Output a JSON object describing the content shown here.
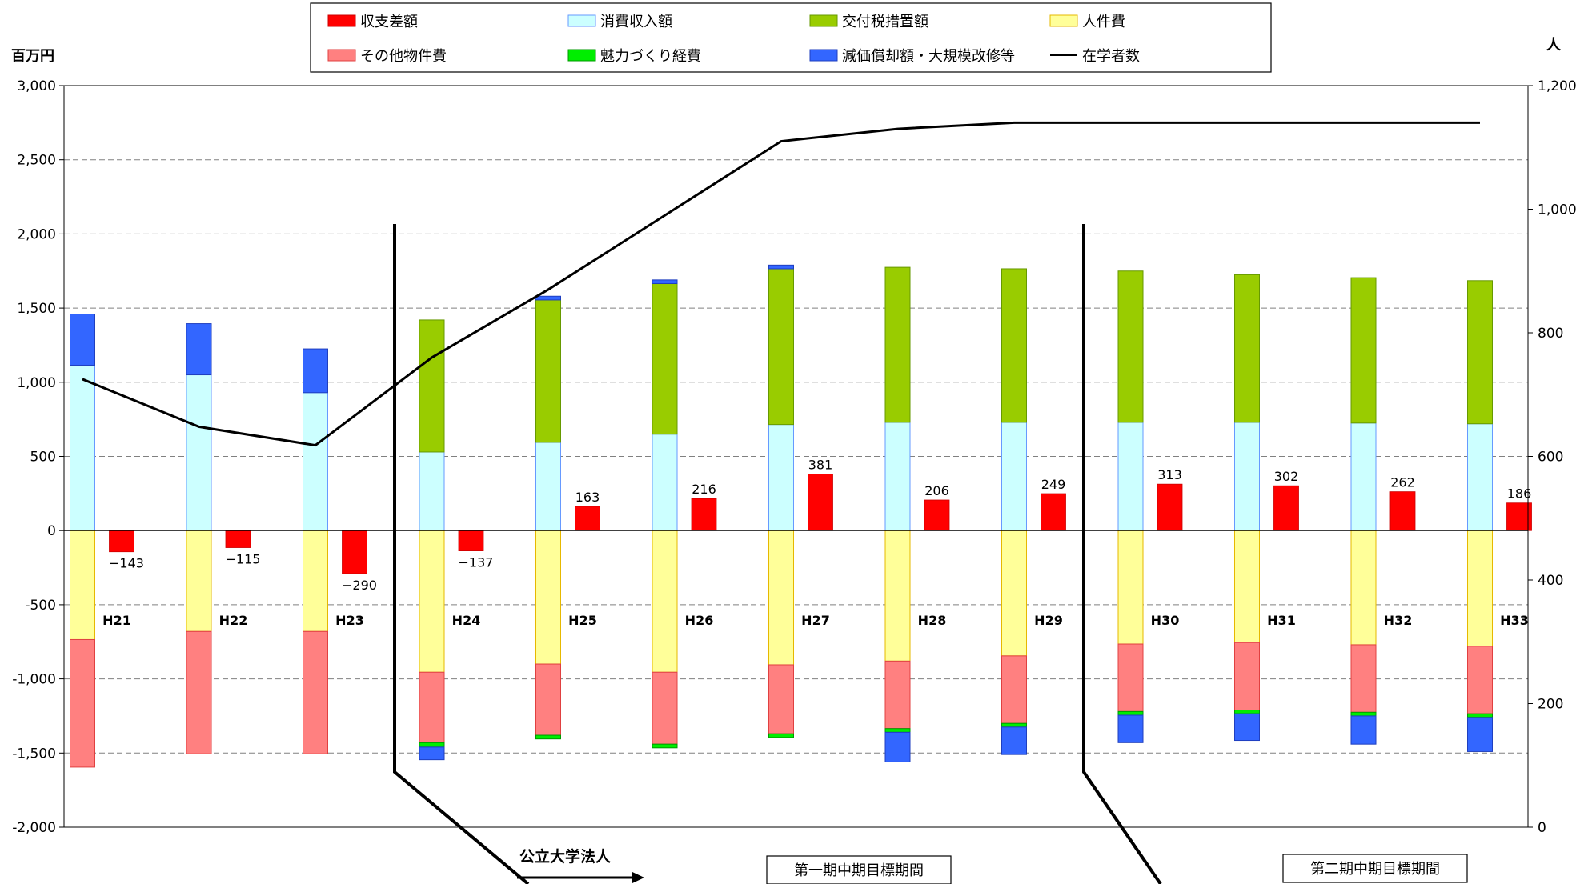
{
  "chart_data": {
    "type": "bar",
    "title": "",
    "y_left_label": "百万円",
    "y_right_label": "人",
    "y_left_range": [
      -2000,
      3000
    ],
    "y_left_ticks": [
      3000,
      2500,
      2000,
      1500,
      1000,
      500,
      0,
      -500,
      -1000,
      -1500,
      -2000
    ],
    "y_left_tick_labels": [
      "3,000",
      "2,500",
      "2,000",
      "1,500",
      "1,000",
      "500",
      "0",
      "-500",
      "-1,000",
      "-1,500",
      "-2,000"
    ],
    "y_right_range": [
      0,
      1200
    ],
    "y_right_ticks": [
      1200,
      1000,
      800,
      600,
      400,
      200,
      0
    ],
    "y_right_tick_labels": [
      "1,200",
      "1,000",
      "800",
      "600",
      "400",
      "200",
      "0"
    ],
    "grid": "horizontal dashed",
    "legend_placement": "top",
    "categories": [
      "H21",
      "H22",
      "H23",
      "H24",
      "H25",
      "H26",
      "H27",
      "H28",
      "H29",
      "H30",
      "H31",
      "H32",
      "H33"
    ],
    "stacked_positive": [
      {
        "key": "consumption",
        "name": "消費収入額",
        "color": "#ccffff",
        "border": "#6699ff",
        "values": [
          1115,
          1050,
          930,
          530,
          595,
          650,
          715,
          730,
          730,
          730,
          730,
          725,
          720
        ]
      },
      {
        "key": "tax",
        "name": "交付税措置額",
        "color": "#99cc00",
        "border": "#669900",
        "values": [
          0,
          0,
          0,
          890,
          960,
          1015,
          1050,
          1045,
          1035,
          1020,
          995,
          980,
          965
        ]
      },
      {
        "key": "depr_pos",
        "name": "減価償却額・大規模改修等",
        "color": "#3366ff",
        "border": "#1f3fbf",
        "values": [
          345,
          345,
          295,
          0,
          25,
          25,
          25,
          0,
          0,
          0,
          0,
          0,
          0
        ]
      }
    ],
    "stacked_negative": [
      {
        "key": "personnel",
        "name": "人件費",
        "color": "#ffff99",
        "border": "#e6b800",
        "values": [
          -735,
          -680,
          -680,
          -955,
          -900,
          -955,
          -905,
          -880,
          -845,
          -765,
          -755,
          -770,
          -780
        ]
      },
      {
        "key": "other",
        "name": "その他物件費",
        "color": "#ff8080",
        "border": "#e04040",
        "values": [
          -860,
          -825,
          -825,
          -475,
          -480,
          -485,
          -465,
          -455,
          -455,
          -455,
          -455,
          -455,
          -455
        ]
      },
      {
        "key": "attract",
        "name": "魅力づくり経費",
        "color": "#00ee00",
        "border": "#009900",
        "values": [
          0,
          0,
          0,
          -30,
          -25,
          -25,
          -25,
          -25,
          -25,
          -25,
          -25,
          -25,
          -25
        ]
      },
      {
        "key": "depr_neg",
        "name": "減価償却額・大規模改修等",
        "color": "#3366ff",
        "border": "#1f3fbf",
        "values": [
          0,
          0,
          0,
          -85,
          0,
          0,
          0,
          -200,
          -185,
          -185,
          -180,
          -190,
          -230
        ]
      }
    ],
    "balance": {
      "name": "収支差額",
      "color": "#ff0000",
      "values": [
        -143,
        -115,
        -290,
        -137,
        163,
        216,
        381,
        206,
        249,
        313,
        302,
        262,
        186
      ],
      "labels": [
        "−143",
        "−115",
        "−290",
        "−137",
        "163",
        "216",
        "381",
        "206",
        "249",
        "313",
        "302",
        "262",
        "186"
      ]
    },
    "students": {
      "name": "在学者数",
      "color": "#000000",
      "axis": "right",
      "values": [
        725,
        648,
        618,
        760,
        870,
        990,
        1110,
        1130,
        1140,
        1140,
        1140,
        1140,
        1140
      ]
    },
    "legend": [
      {
        "key": "balance",
        "label": "収支差額",
        "swatch": "#ff0000",
        "border": "#cc0000",
        "kind": "box"
      },
      {
        "key": "consumption",
        "label": "消費収入額",
        "swatch": "#ccffff",
        "border": "#6699ff",
        "kind": "box"
      },
      {
        "key": "tax",
        "label": "交付税措置額",
        "swatch": "#99cc00",
        "border": "#669900",
        "kind": "box"
      },
      {
        "key": "personnel",
        "label": "人件費",
        "swatch": "#ffff99",
        "border": "#e6b800",
        "kind": "box"
      },
      {
        "key": "other",
        "label": "その他物件費",
        "swatch": "#ff8080",
        "border": "#e04040",
        "kind": "box"
      },
      {
        "key": "attract",
        "label": "魅力づくり経費",
        "swatch": "#00ee00",
        "border": "#009900",
        "kind": "box"
      },
      {
        "key": "depr",
        "label": "減価償却額・大規模改修等",
        "swatch": "#3366ff",
        "border": "#1f3fbf",
        "kind": "box"
      },
      {
        "key": "students",
        "label": "在学者数",
        "swatch": "#000000",
        "border": "#000000",
        "kind": "line"
      }
    ],
    "annotations": {
      "corporation": "公立大学法人",
      "period1": "第一期中期目標期間",
      "period2": "第二期中期目標期間"
    }
  }
}
